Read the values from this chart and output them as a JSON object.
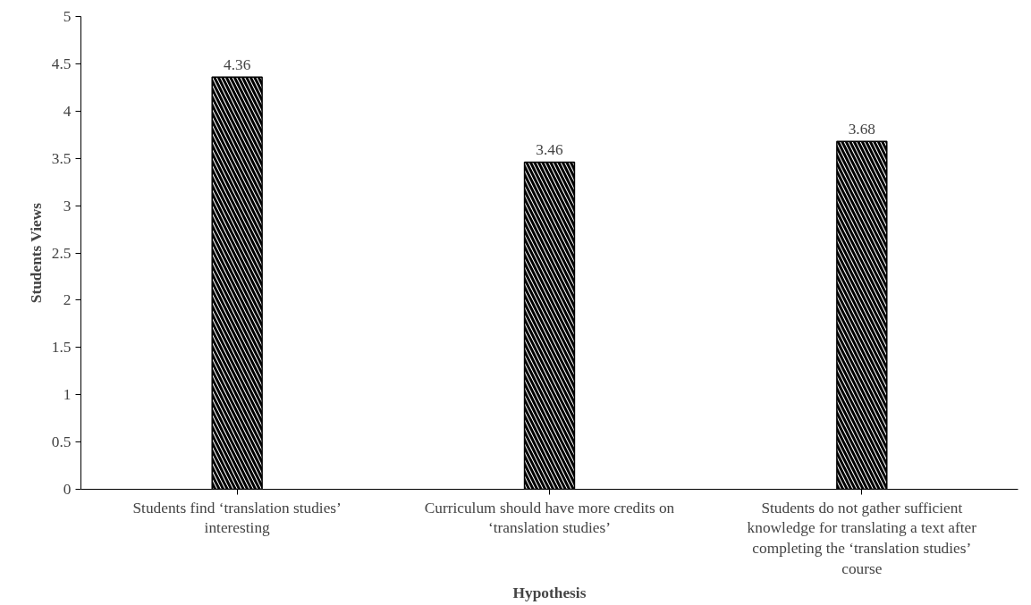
{
  "chart_data": {
    "type": "bar",
    "xlabel": "Hypothesis",
    "ylabel": "Students Views",
    "categories": [
      "Students find ‘translation studies’ interesting",
      "Curriculum should have more credits on ‘translation studies’",
      "Students do not gather sufficient knowledge for translating a text after completing the ‘translation studies’ course"
    ],
    "values": [
      4.36,
      3.46,
      3.68
    ],
    "color": "#000000",
    "ylim": [
      0,
      5
    ],
    "yticks": [
      0,
      0.5,
      1,
      1.5,
      2,
      2.5,
      3,
      3.5,
      4,
      4.5,
      5
    ],
    "grid": false,
    "data_labels": true
  }
}
